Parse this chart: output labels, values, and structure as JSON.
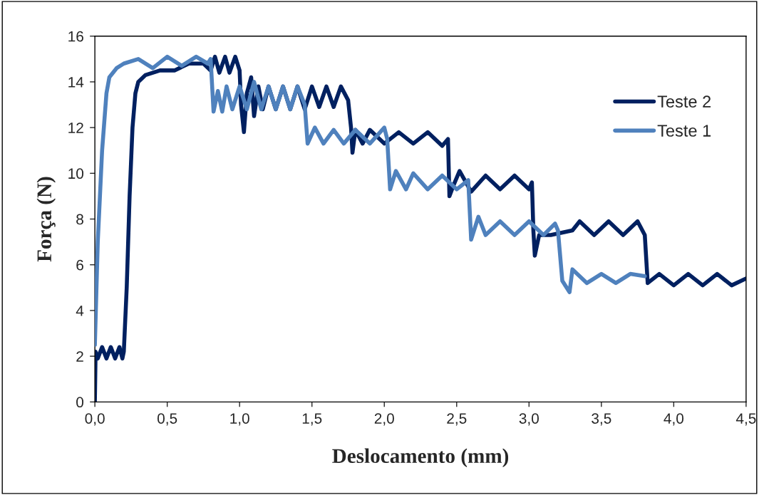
{
  "chart_data": {
    "type": "line",
    "xlabel": "Deslocamento (mm)",
    "ylabel": "Força (N)",
    "xlim": [
      0,
      4.5
    ],
    "ylim": [
      0,
      16
    ],
    "xticks": [
      {
        "value": 0,
        "label": "0,0"
      },
      {
        "value": 0.5,
        "label": "0,5"
      },
      {
        "value": 1,
        "label": "1,0"
      },
      {
        "value": 1.5,
        "label": "1,5"
      },
      {
        "value": 2,
        "label": "2,0"
      },
      {
        "value": 2.5,
        "label": "2,5"
      },
      {
        "value": 3,
        "label": "3,0"
      },
      {
        "value": 3.5,
        "label": "3,5"
      },
      {
        "value": 4,
        "label": "4,0"
      },
      {
        "value": 4.5,
        "label": "4,5"
      }
    ],
    "yticks": [
      0,
      2,
      4,
      6,
      8,
      10,
      12,
      14,
      16
    ],
    "grid": false,
    "legend": "top right",
    "marker": "none",
    "line_style": "solid",
    "series": [
      {
        "name": "Teste 2",
        "color": "#002060",
        "x": [
          0,
          0.005,
          0.02,
          0.05,
          0.08,
          0.11,
          0.14,
          0.17,
          0.19,
          0.2,
          0.22,
          0.24,
          0.26,
          0.28,
          0.3,
          0.35,
          0.45,
          0.55,
          0.65,
          0.75,
          0.8,
          0.83,
          0.86,
          0.9,
          0.93,
          0.97,
          1.0,
          1.01,
          1.03,
          1.05,
          1.08,
          1.1,
          1.13,
          1.16,
          1.2,
          1.25,
          1.3,
          1.35,
          1.4,
          1.45,
          1.5,
          1.55,
          1.6,
          1.65,
          1.7,
          1.75,
          1.77,
          1.78,
          1.8,
          1.85,
          1.9,
          2.0,
          2.1,
          2.2,
          2.3,
          2.4,
          2.44,
          2.45,
          2.48,
          2.52,
          2.6,
          2.7,
          2.8,
          2.9,
          3.0,
          3.02,
          3.03,
          3.04,
          3.07,
          3.15,
          3.3,
          3.35,
          3.45,
          3.55,
          3.65,
          3.75,
          3.8,
          3.82,
          3.9,
          4.0,
          4.1,
          4.2,
          4.3,
          4.4,
          4.5
        ],
        "values": [
          0,
          2.2,
          1.9,
          2.4,
          1.9,
          2.4,
          1.9,
          2.4,
          1.9,
          2.2,
          5,
          9,
          12,
          13.5,
          14,
          14.3,
          14.5,
          14.5,
          14.8,
          14.8,
          14.5,
          15.1,
          14.4,
          15.1,
          14.4,
          15.1,
          14.5,
          13,
          11.8,
          13.5,
          14.2,
          12.5,
          13.8,
          12.8,
          13.8,
          12.8,
          13.8,
          12.8,
          13.8,
          12.8,
          13.8,
          12.9,
          13.8,
          12.9,
          13.8,
          13.2,
          12,
          10.9,
          11.9,
          11.3,
          11.9,
          11.3,
          11.8,
          11.3,
          11.8,
          11.2,
          11.5,
          9.0,
          9.5,
          10.1,
          9.2,
          9.9,
          9.3,
          9.9,
          9.3,
          9.6,
          7.5,
          6.4,
          7.3,
          7.3,
          7.5,
          7.9,
          7.3,
          7.9,
          7.3,
          7.9,
          7.3,
          5.2,
          5.6,
          5.1,
          5.6,
          5.1,
          5.6,
          5.1,
          5.4
        ]
      },
      {
        "name": "Teste 1",
        "color": "#4f81bd",
        "x": [
          0,
          0.02,
          0.05,
          0.08,
          0.1,
          0.15,
          0.2,
          0.3,
          0.4,
          0.5,
          0.6,
          0.7,
          0.78,
          0.8,
          0.82,
          0.85,
          0.88,
          0.91,
          0.95,
          1.0,
          1.05,
          1.1,
          1.15,
          1.2,
          1.25,
          1.3,
          1.35,
          1.4,
          1.45,
          1.47,
          1.52,
          1.58,
          1.65,
          1.72,
          1.8,
          1.9,
          2.0,
          2.02,
          2.04,
          2.08,
          2.15,
          2.2,
          2.3,
          2.4,
          2.5,
          2.58,
          2.6,
          2.65,
          2.7,
          2.8,
          2.9,
          3.0,
          3.1,
          3.18,
          3.2,
          3.23,
          3.28,
          3.3,
          3.4,
          3.5,
          3.6,
          3.7,
          3.8
        ],
        "values": [
          2.5,
          7,
          11,
          13.5,
          14.2,
          14.6,
          14.8,
          15,
          14.6,
          15.1,
          14.7,
          15.1,
          14.8,
          15,
          12.7,
          13.6,
          12.7,
          13.8,
          12.8,
          13.8,
          12.8,
          14,
          12.8,
          13.8,
          12.8,
          13.8,
          12.8,
          13.8,
          13,
          11.3,
          12,
          11.3,
          11.9,
          11.3,
          11.9,
          11.3,
          12,
          11.5,
          9.3,
          10.1,
          9.3,
          10,
          9.3,
          9.9,
          9.3,
          9.7,
          7.1,
          8.1,
          7.3,
          7.9,
          7.3,
          7.9,
          7.3,
          7.8,
          7.5,
          5.3,
          4.8,
          5.8,
          5.2,
          5.6,
          5.2,
          5.6,
          5.5
        ]
      }
    ]
  }
}
